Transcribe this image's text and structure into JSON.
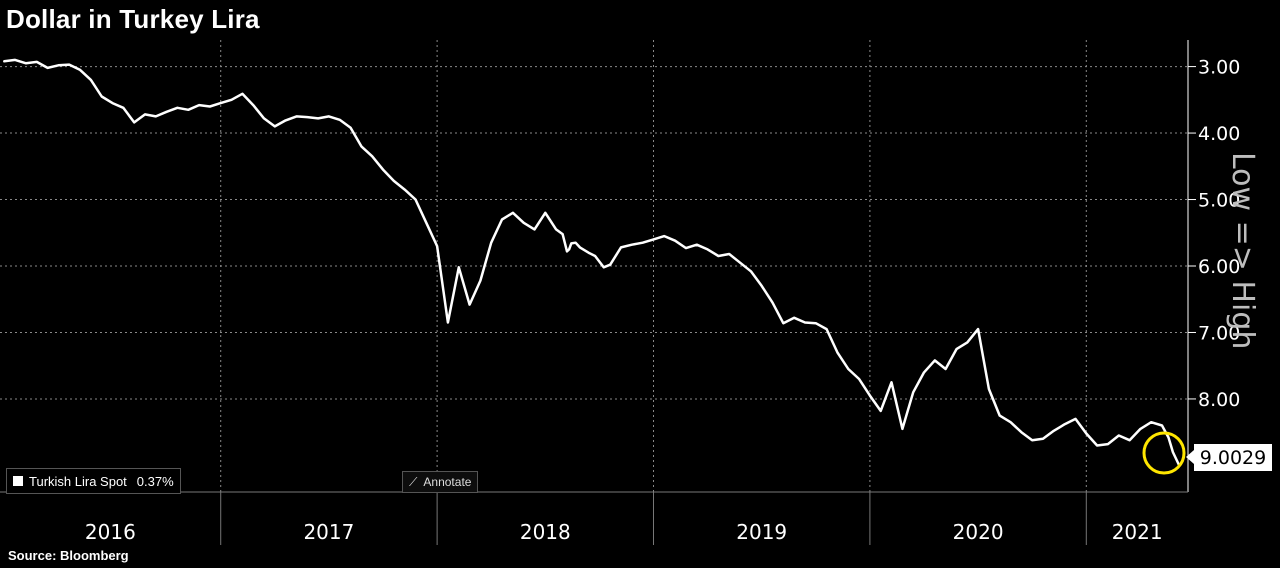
{
  "title": "Dollar in Turkey Lira",
  "source": "Source: Bloomberg",
  "legend": {
    "label": "Turkish Lira Spot",
    "change": "0.37%"
  },
  "annotate_label": "Annotate",
  "side_label": "Low => High",
  "last_value": "9.0029",
  "colors": {
    "background": "#000000",
    "line": "#ffffff",
    "highlight": "#ffe600",
    "grid": "#8a8a8a"
  },
  "chart_data": {
    "type": "line",
    "title": "Dollar in Turkey Lira",
    "xlabel": "",
    "ylabel": "",
    "x_tick_labels": [
      "2016",
      "2017",
      "2018",
      "2019",
      "2020",
      "2021"
    ],
    "y_tick_labels": [
      "3.00",
      "4.00",
      "5.00",
      "6.00",
      "7.00",
      "8.00"
    ],
    "y_axis": {
      "inverted": true,
      "range": [
        2.6,
        9.4
      ],
      "position": "right"
    },
    "x_range": [
      2015.98,
      2021.47
    ],
    "grid": true,
    "legend_position": "bottom-left",
    "series": [
      {
        "name": "Turkish Lira Spot",
        "x": [
          2016.0,
          2016.05,
          2016.1,
          2016.15,
          2016.2,
          2016.25,
          2016.3,
          2016.35,
          2016.4,
          2016.45,
          2016.5,
          2016.55,
          2016.6,
          2016.65,
          2016.7,
          2016.75,
          2016.8,
          2016.85,
          2016.9,
          2016.95,
          2017.0,
          2017.05,
          2017.1,
          2017.15,
          2017.2,
          2017.25,
          2017.3,
          2017.35,
          2017.4,
          2017.45,
          2017.5,
          2017.55,
          2017.6,
          2017.65,
          2017.7,
          2017.75,
          2017.8,
          2017.85,
          2017.9,
          2017.95,
          2018.0,
          2018.05,
          2018.1,
          2018.15,
          2018.2,
          2018.25,
          2018.3,
          2018.35,
          2018.4,
          2018.45,
          2018.5,
          2018.55,
          2018.58,
          2018.6,
          2018.61,
          2018.62,
          2018.64,
          2018.66,
          2018.7,
          2018.73,
          2018.77,
          2018.8,
          2018.85,
          2018.9,
          2018.95,
          2019.0,
          2019.05,
          2019.1,
          2019.15,
          2019.2,
          2019.25,
          2019.3,
          2019.35,
          2019.4,
          2019.45,
          2019.5,
          2019.55,
          2019.6,
          2019.65,
          2019.7,
          2019.75,
          2019.8,
          2019.85,
          2019.9,
          2019.95,
          2020.0,
          2020.05,
          2020.1,
          2020.15,
          2020.2,
          2020.25,
          2020.3,
          2020.35,
          2020.4,
          2020.45,
          2020.5,
          2020.55,
          2020.6,
          2020.65,
          2020.7,
          2020.75,
          2020.8,
          2020.85,
          2020.88,
          2020.9,
          2020.95,
          2021.0,
          2021.05,
          2021.1,
          2021.15,
          2021.2,
          2021.25,
          2021.3,
          2021.35,
          2021.38,
          2021.4,
          2021.43
        ],
        "y": [
          2.92,
          2.9,
          2.95,
          2.93,
          3.02,
          2.98,
          2.97,
          3.05,
          3.2,
          3.45,
          3.55,
          3.62,
          3.84,
          3.72,
          3.75,
          3.68,
          3.62,
          3.65,
          3.58,
          3.6,
          3.55,
          3.5,
          3.41,
          3.58,
          3.78,
          3.9,
          3.81,
          3.75,
          3.76,
          3.78,
          3.75,
          3.8,
          3.92,
          4.2,
          4.35,
          4.55,
          4.72,
          4.85,
          5.0,
          5.35,
          5.7,
          6.85,
          6.02,
          6.58,
          6.22,
          5.65,
          5.3,
          5.2,
          5.35,
          5.45,
          5.2,
          5.45,
          5.52,
          5.78,
          5.75,
          5.66,
          5.65,
          5.72,
          5.8,
          5.85,
          6.02,
          5.98,
          5.72,
          5.68,
          5.65,
          5.6,
          5.55,
          5.62,
          5.73,
          5.68,
          5.75,
          5.85,
          5.82,
          5.95,
          6.08,
          6.3,
          6.55,
          6.86,
          6.78,
          6.85,
          6.86,
          6.95,
          7.3,
          7.55,
          7.7,
          7.95,
          8.18,
          7.75,
          8.45,
          7.9,
          7.6,
          7.42,
          7.55,
          7.25,
          7.15,
          6.95,
          7.85,
          8.25,
          8.35,
          8.5,
          8.62,
          8.6,
          8.48,
          8.42,
          8.38,
          8.3,
          8.52,
          8.7,
          8.68,
          8.55,
          8.62,
          8.45,
          8.35,
          8.4,
          8.58,
          8.8,
          9.0029
        ]
      }
    ]
  }
}
